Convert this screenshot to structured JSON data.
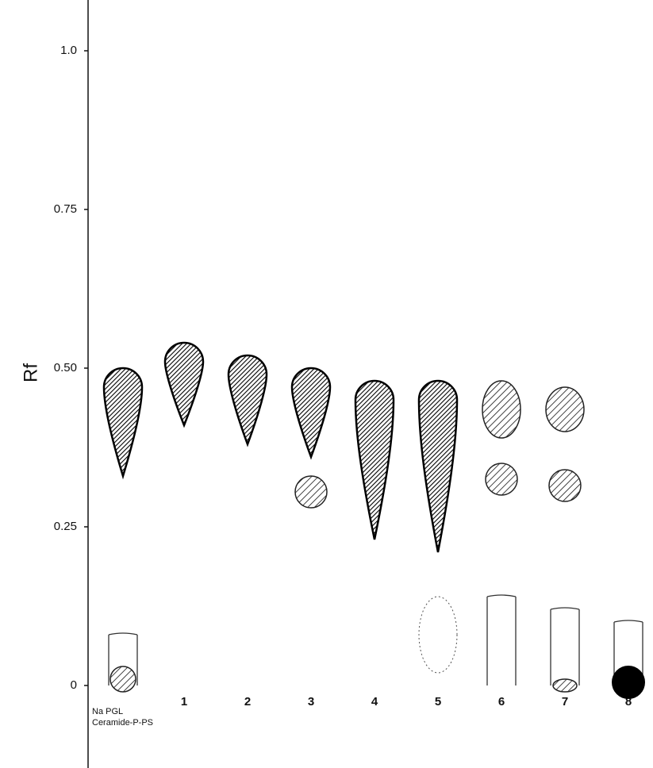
{
  "chart_data": {
    "type": "tlc",
    "y_label": "Rf",
    "ylim": [
      -0.13,
      1.08
    ],
    "yticks": [
      0,
      0.25,
      {
        "value": 0.5,
        "label": "0.50"
      },
      0.75,
      {
        "value": 1,
        "label": "1.0"
      }
    ],
    "categories": [
      null,
      "1",
      "2",
      "3",
      "4",
      "5",
      "6",
      "7",
      "8"
    ],
    "reference_label": [
      "Na PGL",
      "Ceramide-P-PS"
    ],
    "spots": [
      {
        "lane": 0,
        "top": 0.08,
        "bottom": 0,
        "style": "outline"
      },
      {
        "lane": 0,
        "top": 0.03,
        "bottom": -0.01,
        "style": "hatched"
      },
      {
        "lane": 0,
        "top": 0.5,
        "bottom": 0.33,
        "style": "dark"
      },
      {
        "lane": 1,
        "top": 0.54,
        "bottom": 0.41,
        "style": "dark"
      },
      {
        "lane": 2,
        "top": 0.52,
        "bottom": 0.38,
        "style": "dark"
      },
      {
        "lane": 3,
        "top": 0.5,
        "bottom": 0.36,
        "style": "dark"
      },
      {
        "lane": 3,
        "top": 0.33,
        "bottom": 0.28,
        "style": "hatched"
      },
      {
        "lane": 4,
        "top": 0.48,
        "bottom": 0.23,
        "style": "dark"
      },
      {
        "lane": 5,
        "top": 0.48,
        "bottom": 0.21,
        "style": "dark"
      },
      {
        "lane": 5,
        "top": 0.14,
        "bottom": 0.02,
        "style": "dotted"
      },
      {
        "lane": 6,
        "top": 0.14,
        "bottom": 0,
        "style": "outline"
      },
      {
        "lane": 6,
        "top": 0.48,
        "bottom": 0.39,
        "style": "hatched"
      },
      {
        "lane": 6,
        "top": 0.35,
        "bottom": 0.3,
        "style": "hatched"
      },
      {
        "lane": 7,
        "top": 0.12,
        "bottom": 0,
        "style": "outline"
      },
      {
        "lane": 7,
        "top": 0.47,
        "bottom": 0.4,
        "style": "hatched"
      },
      {
        "lane": 7,
        "top": 0.34,
        "bottom": 0.29,
        "style": "hatched"
      },
      {
        "lane": 7,
        "top": 0.01,
        "bottom": -0.01,
        "style": "hatched"
      },
      {
        "lane": 8,
        "top": 0.1,
        "bottom": 0,
        "style": "outline"
      },
      {
        "lane": 8,
        "top": 0.03,
        "bottom": -0.02,
        "style": "black"
      }
    ]
  }
}
